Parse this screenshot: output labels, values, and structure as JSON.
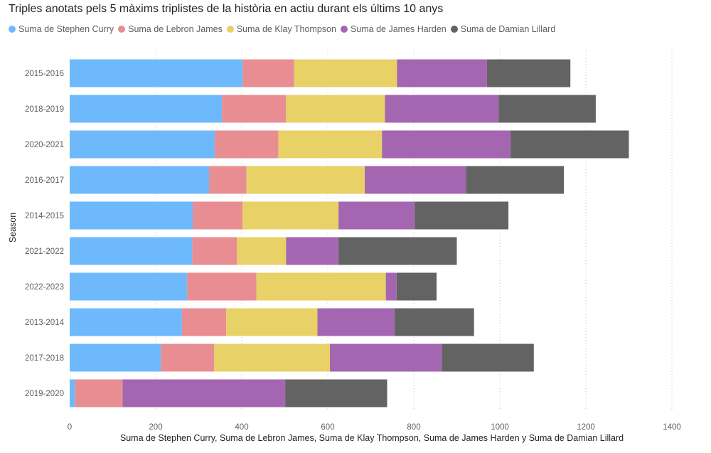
{
  "title": "Triples anotats pels 5 màxims triplistes de la història en actiu durant els últims 10 anys",
  "legend": [
    {
      "label": "Suma de Stephen Curry",
      "color": "#6EB9FC"
    },
    {
      "label": "Suma de Lebron James",
      "color": "#E88E93"
    },
    {
      "label": "Suma de Klay Thompson",
      "color": "#E8D166"
    },
    {
      "label": "Suma de James Harden",
      "color": "#A566B1"
    },
    {
      "label": "Suma de Damian Lillard",
      "color": "#636363"
    }
  ],
  "chart_data": {
    "type": "bar",
    "orientation": "horizontal",
    "stacked": true,
    "title": "Triples anotats pels 5 màxims triplistes de la història en actiu durant els últims 10 anys",
    "xlabel": "Suma de Stephen Curry, Suma de Lebron James, Suma de Klay Thompson, Suma de James Harden y Suma de Damian Lillard",
    "ylabel": "Season",
    "xlim": [
      0,
      1400
    ],
    "xticks": [
      0,
      200,
      400,
      600,
      800,
      1000,
      1200,
      1400
    ],
    "grid": "vertical dotted",
    "legend_position": "top-left",
    "categories": [
      "2015-2016",
      "2018-2019",
      "2020-2021",
      "2016-2017",
      "2014-2015",
      "2021-2022",
      "2022-2023",
      "2013-2014",
      "2017-2018",
      "2019-2020"
    ],
    "series": [
      {
        "name": "Suma de Stephen Curry",
        "color": "#6EB9FC",
        "values": [
          402,
          354,
          337,
          324,
          286,
          285,
          273,
          261,
          212,
          12
        ]
      },
      {
        "name": "Suma de Lebron James",
        "color": "#E88E93",
        "values": [
          120,
          149,
          148,
          87,
          116,
          104,
          161,
          103,
          124,
          111
        ]
      },
      {
        "name": "Suma de Klay Thompson",
        "color": "#E8D166",
        "values": [
          239,
          230,
          241,
          275,
          223,
          114,
          301,
          212,
          269,
          0
        ]
      },
      {
        "name": "Suma de James Harden",
        "color": "#A566B1",
        "values": [
          209,
          264,
          299,
          235,
          177,
          122,
          25,
          179,
          260,
          378
        ]
      },
      {
        "name": "Suma de Damian Lillard",
        "color": "#636363",
        "values": [
          194,
          226,
          275,
          228,
          218,
          275,
          93,
          185,
          214,
          237
        ]
      }
    ]
  }
}
